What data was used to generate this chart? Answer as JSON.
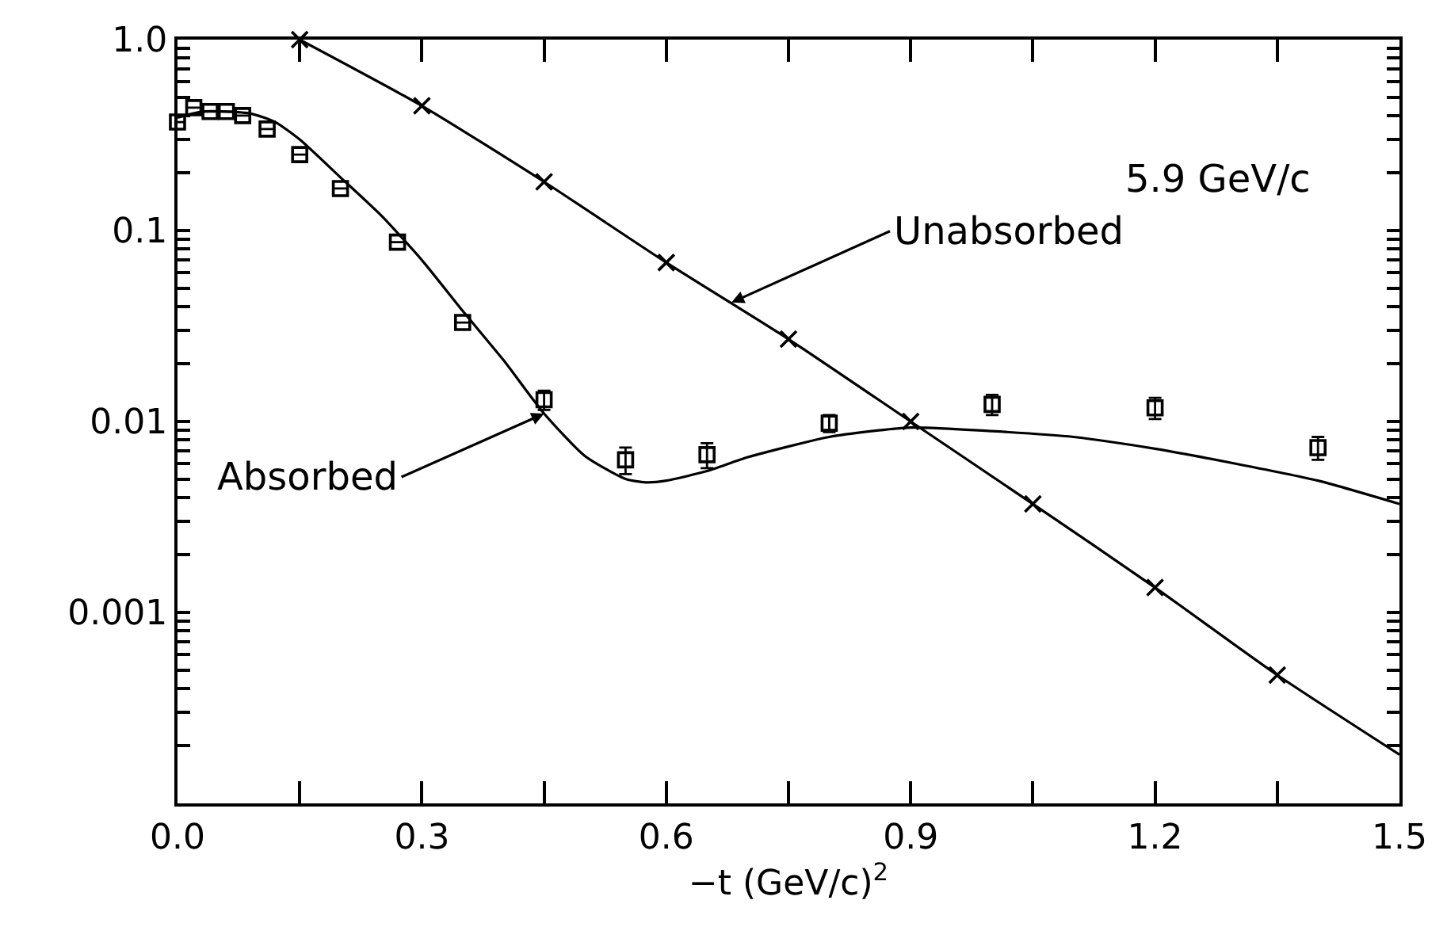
{
  "chart_data": {
    "type": "scatter",
    "xlabel": "−t (GeV/c)$^{2}$",
    "xlim": [
      0,
      1.5
    ],
    "xticks": [
      {
        "value": 0,
        "label": "0.0"
      },
      {
        "value": 0.15,
        "label": null
      },
      {
        "value": 0.3,
        "label": "0.3"
      },
      {
        "value": 0.45,
        "label": null
      },
      {
        "value": 0.6,
        "label": "0.6"
      },
      {
        "value": 0.75,
        "label": null
      },
      {
        "value": 0.9,
        "label": "0.9"
      },
      {
        "value": 1.05,
        "label": null
      },
      {
        "value": 1.2,
        "label": "1.2"
      },
      {
        "value": 1.35,
        "label": null
      },
      {
        "value": 1.5,
        "label": "1.5"
      }
    ],
    "ylim": [
      0.0001,
      1.0
    ],
    "log": true,
    "yticks": [
      {
        "value": 0.0002,
        "label": null
      },
      {
        "value": 0.0003,
        "label": null
      },
      {
        "value": 0.0004,
        "label": null
      },
      {
        "value": 0.0005,
        "label": null
      },
      {
        "value": 0.0006,
        "label": null
      },
      {
        "value": 0.0007,
        "label": null
      },
      {
        "value": 0.0008,
        "label": null
      },
      {
        "value": 0.0009,
        "label": null
      },
      {
        "value": 0.001,
        "label": "0.001"
      },
      {
        "value": 0.002,
        "label": null
      },
      {
        "value": 0.003,
        "label": null
      },
      {
        "value": 0.004,
        "label": null
      },
      {
        "value": 0.005,
        "label": null
      },
      {
        "value": 0.006,
        "label": null
      },
      {
        "value": 0.007,
        "label": null
      },
      {
        "value": 0.008,
        "label": null
      },
      {
        "value": 0.009,
        "label": null
      },
      {
        "value": 0.01,
        "label": "0.01"
      },
      {
        "value": 0.02,
        "label": null
      },
      {
        "value": 0.03,
        "label": null
      },
      {
        "value": 0.04,
        "label": null
      },
      {
        "value": 0.05,
        "label": null
      },
      {
        "value": 0.06,
        "label": null
      },
      {
        "value": 0.07,
        "label": null
      },
      {
        "value": 0.08,
        "label": null
      },
      {
        "value": 0.09,
        "label": null
      },
      {
        "value": 0.1,
        "label": "0.1"
      },
      {
        "value": 0.2,
        "label": null
      },
      {
        "value": 0.3,
        "label": null
      },
      {
        "value": 0.4,
        "label": null
      },
      {
        "value": 0.5,
        "label": null
      },
      {
        "value": 0.6,
        "label": null
      },
      {
        "value": 0.7,
        "label": null
      },
      {
        "value": 0.8,
        "label": null
      },
      {
        "value": 0.9,
        "label": null
      },
      {
        "value": 1.0,
        "label": "1.0"
      }
    ],
    "series": [
      {
        "type": "line",
        "color": "#000000",
        "marker": "none",
        "line_style": "solid",
        "x": [
          0.15,
          0.3,
          0.45,
          0.6,
          0.75,
          0.9,
          1.05,
          1.2,
          1.35,
          1.5
        ],
        "values": [
          1.0,
          0.45,
          0.18,
          0.068,
          0.027,
          0.01,
          0.0037,
          0.00135,
          0.00047,
          0.00018
        ]
      },
      {
        "type": "line",
        "color": "#000000",
        "marker": "none",
        "line_style": "solid",
        "x": [
          0,
          0.03,
          0.06,
          0.09,
          0.12,
          0.15,
          0.2,
          0.25,
          0.3,
          0.35,
          0.4,
          0.45,
          0.5,
          0.55,
          0.575,
          0.6,
          0.65,
          0.7,
          0.8,
          0.9,
          1.0,
          1.1,
          1.2,
          1.3,
          1.4,
          1.5
        ],
        "values": [
          0.39,
          0.42,
          0.42,
          0.41,
          0.37,
          0.3,
          0.19,
          0.12,
          0.07,
          0.038,
          0.021,
          0.011,
          0.0066,
          0.005,
          0.0048,
          0.0049,
          0.0055,
          0.0065,
          0.0083,
          0.0093,
          0.0089,
          0.0083,
          0.0072,
          0.006,
          0.0049,
          0.0037
        ]
      },
      {
        "color": "#000000",
        "marker": "cross",
        "x": [
          0.15,
          0.3,
          0.45,
          0.6,
          0.75,
          0.9,
          1.05,
          1.2,
          1.35
        ],
        "values": [
          1.0,
          0.45,
          0.18,
          0.068,
          0.027,
          0.01,
          0.0037,
          0.00135,
          0.00047
        ]
      },
      {
        "color": "#000000",
        "marker": "square",
        "x": [
          0.0,
          0.02,
          0.04,
          0.06,
          0.08,
          0.11,
          0.15,
          0.2,
          0.27,
          0.35,
          0.45,
          0.55,
          0.65,
          0.8,
          1.0,
          1.2,
          1.4
        ],
        "values": [
          0.37,
          0.44,
          0.42,
          0.42,
          0.4,
          0.34,
          0.25,
          0.166,
          0.087,
          0.033,
          0.013,
          0.0063,
          0.0067,
          0.0098,
          0.0123,
          0.0118,
          0.0073
        ],
        "errors": [
          null,
          null,
          null,
          null,
          null,
          null,
          null,
          null,
          null,
          null,
          0.0015,
          0.001,
          0.001,
          0.001,
          0.0015,
          0.0015,
          0.001
        ]
      }
    ],
    "annotations": [
      "5.9 GeV/c",
      {
        "text": "Unabsorbed",
        "x": 0.68,
        "y": 0.042
      },
      {
        "text": "Absorbed",
        "x": 0.45,
        "y": 0.011
      }
    ]
  }
}
